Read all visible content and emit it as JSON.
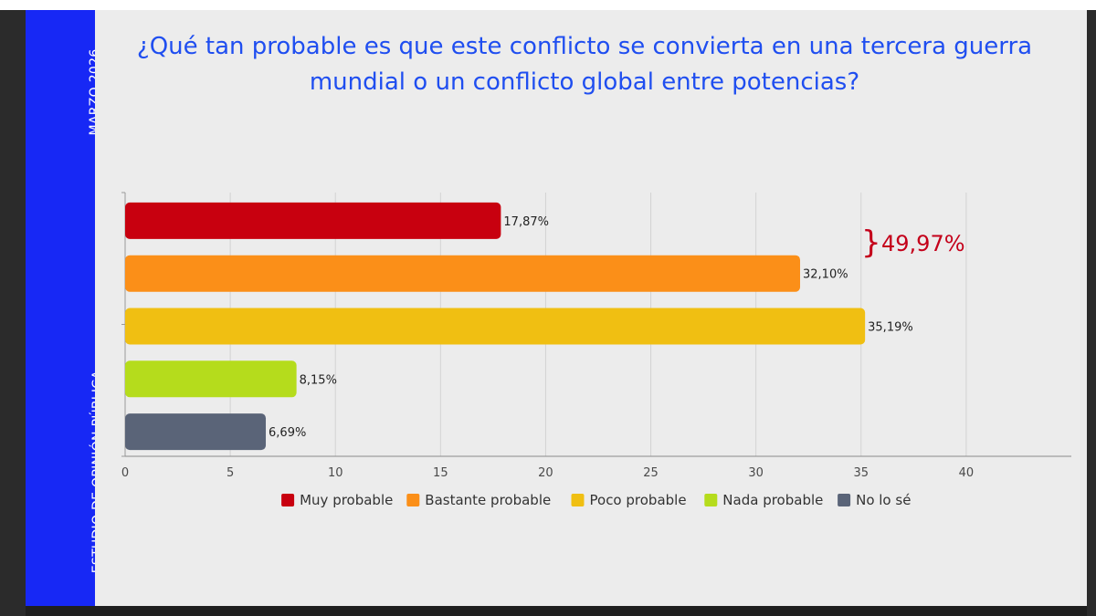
{
  "side_panel": {
    "date": "MARZO 2026",
    "study": "ESTUDIO DE OPINIÓN PÚBLICA"
  },
  "colors": {
    "side_panel": "#1728f5",
    "title": "#1f4ef0",
    "background": "#ececec",
    "annotation": "#c4001a"
  },
  "chart_data": {
    "type": "bar",
    "orientation": "horizontal",
    "title": "¿Qué tan probable es que este conflicto se convierta en una tercera guerra mundial o un conflicto global entre potencias?",
    "categories": [
      "Muy probable",
      "Bastante probable",
      "Poco probable",
      "Nada probable",
      "No lo sé"
    ],
    "values": [
      17.87,
      32.1,
      35.19,
      8.15,
      6.69
    ],
    "data_labels": [
      "17,87%",
      "32,10%",
      "35,19%",
      "8,15%",
      "6,69%"
    ],
    "colors": [
      "#c8000f",
      "#fb8f18",
      "#f0bf12",
      "#b5dc1c",
      "#5a6478"
    ],
    "x_ticks": [
      0,
      5,
      10,
      15,
      20,
      25,
      30,
      35,
      40
    ],
    "xlim": [
      0,
      45
    ],
    "grid": true,
    "legend": "bottom",
    "annotation": {
      "brace": "}",
      "text": "49,97%",
      "covers": [
        "Muy probable",
        "Bastante probable"
      ]
    }
  }
}
